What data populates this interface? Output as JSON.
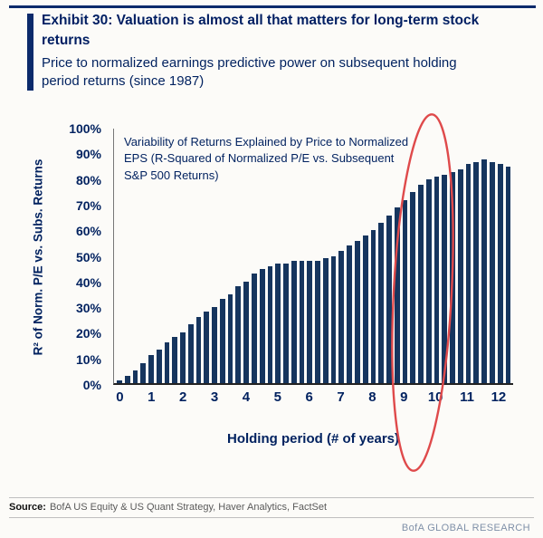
{
  "header": {
    "title": "Exhibit 30: Valuation is almost all that matters for long-term stock returns",
    "subtitle": "Price to normalized earnings predictive power on subsequent holding period returns (since 1987)"
  },
  "chart_data": {
    "type": "bar",
    "annotation": "Variability of Returns Explained by Price to Normalized EPS (R-Squared of Normalized P/E vs. Subsequent S&P 500 Returns)",
    "xlabel": "Holding period (# of years)",
    "ylabel": "R² of Norm. P/E vs. Subs. Returns",
    "x_tick_labels": [
      "0",
      "1",
      "2",
      "3",
      "4",
      "5",
      "6",
      "7",
      "8",
      "9",
      "10",
      "11",
      "12"
    ],
    "y_tick_labels": [
      "0%",
      "10%",
      "20%",
      "30%",
      "40%",
      "50%",
      "60%",
      "70%",
      "80%",
      "90%",
      "100%"
    ],
    "ylim": [
      0,
      100
    ],
    "x_start": 0,
    "x_step_years": 0.25,
    "bars_per_year": 4,
    "values": [
      1,
      3,
      5,
      8,
      11,
      13,
      16,
      18,
      20,
      23,
      26,
      28,
      30,
      33,
      35,
      38,
      40,
      43,
      45,
      46,
      47,
      47,
      48,
      48,
      48,
      48,
      49,
      50,
      52,
      54,
      56,
      58,
      60,
      63,
      66,
      69,
      72,
      75,
      78,
      80,
      81,
      82,
      83,
      84,
      86,
      87,
      88,
      87,
      86,
      85
    ],
    "bar_color": "#16355e",
    "grid": "off",
    "legend": "none",
    "highlight": {
      "shape": "ellipse",
      "color": "#df4a4b",
      "center_year": 10.3
    }
  },
  "footer": {
    "source_label": "Source:",
    "source_text": "BofA US Equity & US Quant Strategy, Haver Analytics, FactSet",
    "brand": "BofA GLOBAL RESEARCH"
  },
  "colors": {
    "navy": "#00215f",
    "accent_bar": "#0b2a6b",
    "bar": "#16355e",
    "ellipse": "#df4a4b"
  }
}
